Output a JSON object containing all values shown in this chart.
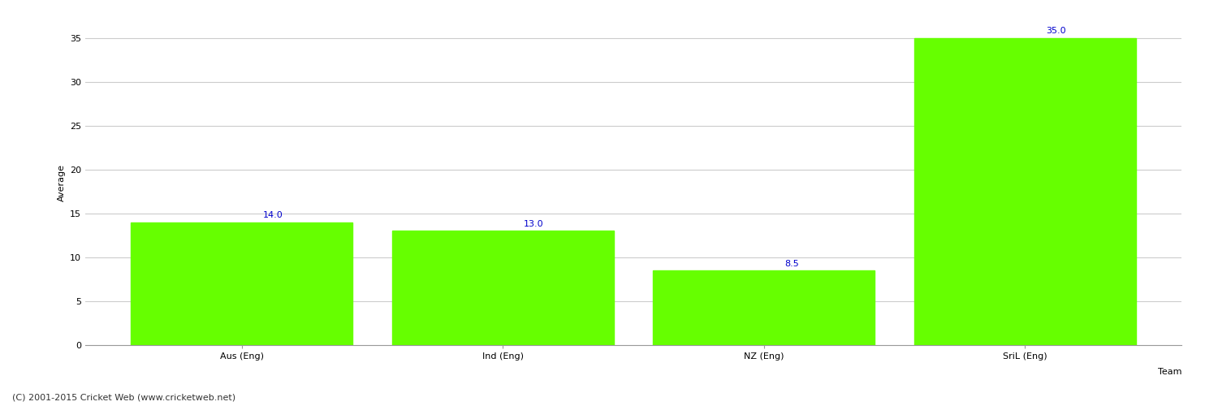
{
  "categories": [
    "Aus (Eng)",
    "Ind (Eng)",
    "NZ (Eng)",
    "SriL (Eng)"
  ],
  "values": [
    14.0,
    13.0,
    8.5,
    35.0
  ],
  "bar_color": "#66ff00",
  "bar_edge_color": "#66ff00",
  "xlabel": "Team",
  "ylabel": "Average",
  "ylim": [
    0,
    37
  ],
  "yticks": [
    0,
    5,
    10,
    15,
    20,
    25,
    30,
    35
  ],
  "label_color": "#0000cc",
  "label_fontsize": 8,
  "axis_fontsize": 8,
  "xlabel_fontsize": 8,
  "ylabel_fontsize": 8,
  "grid_color": "#cccccc",
  "background_color": "#ffffff",
  "footer_text": "(C) 2001-2015 Cricket Web (www.cricketweb.net)",
  "footer_fontsize": 8,
  "footer_color": "#333333",
  "bar_width": 0.85
}
